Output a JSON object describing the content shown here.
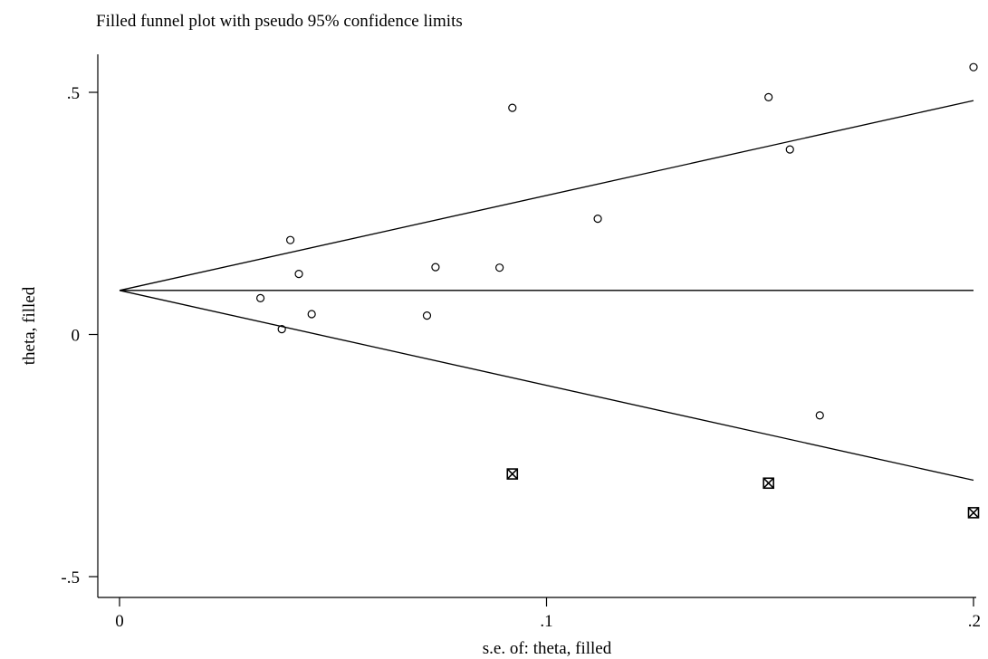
{
  "chart_data": {
    "type": "scatter",
    "title": "Filled funnel plot with pseudo 95% confidence limits",
    "xlabel": "s.e. of: theta, filled",
    "ylabel": "theta, filled",
    "xlim": [
      0,
      0.2
    ],
    "ylim": [
      -0.55,
      0.6
    ],
    "xticks": [
      {
        "value": 0,
        "label": "0"
      },
      {
        "value": 0.1,
        "label": ".1"
      },
      {
        "value": 0.2,
        "label": ".2"
      }
    ],
    "yticks": [
      {
        "value": 0.5,
        "label": ".5"
      },
      {
        "value": 0,
        "label": "0"
      },
      {
        "value": -0.5,
        "label": "-.5"
      }
    ],
    "grid": false,
    "legend": "none",
    "pooled_estimate": 0.091,
    "funnel": {
      "z": 1.96
    },
    "series": [
      {
        "marker": "hollow-circle",
        "points": [
          {
            "x": 0.033,
            "y": 0.075
          },
          {
            "x": 0.038,
            "y": 0.011
          },
          {
            "x": 0.04,
            "y": 0.195
          },
          {
            "x": 0.042,
            "y": 0.125
          },
          {
            "x": 0.045,
            "y": 0.042
          },
          {
            "x": 0.072,
            "y": 0.039
          },
          {
            "x": 0.074,
            "y": 0.139
          },
          {
            "x": 0.089,
            "y": 0.138
          },
          {
            "x": 0.092,
            "y": 0.468
          },
          {
            "x": 0.112,
            "y": 0.239
          },
          {
            "x": 0.152,
            "y": 0.49
          },
          {
            "x": 0.157,
            "y": 0.382
          },
          {
            "x": 0.164,
            "y": -0.167
          },
          {
            "x": 0.2,
            "y": 0.552
          }
        ]
      },
      {
        "marker": "boxed-cross",
        "points": [
          {
            "x": 0.092,
            "y": -0.288
          },
          {
            "x": 0.152,
            "y": -0.307
          },
          {
            "x": 0.2,
            "y": -0.368
          }
        ]
      }
    ]
  }
}
